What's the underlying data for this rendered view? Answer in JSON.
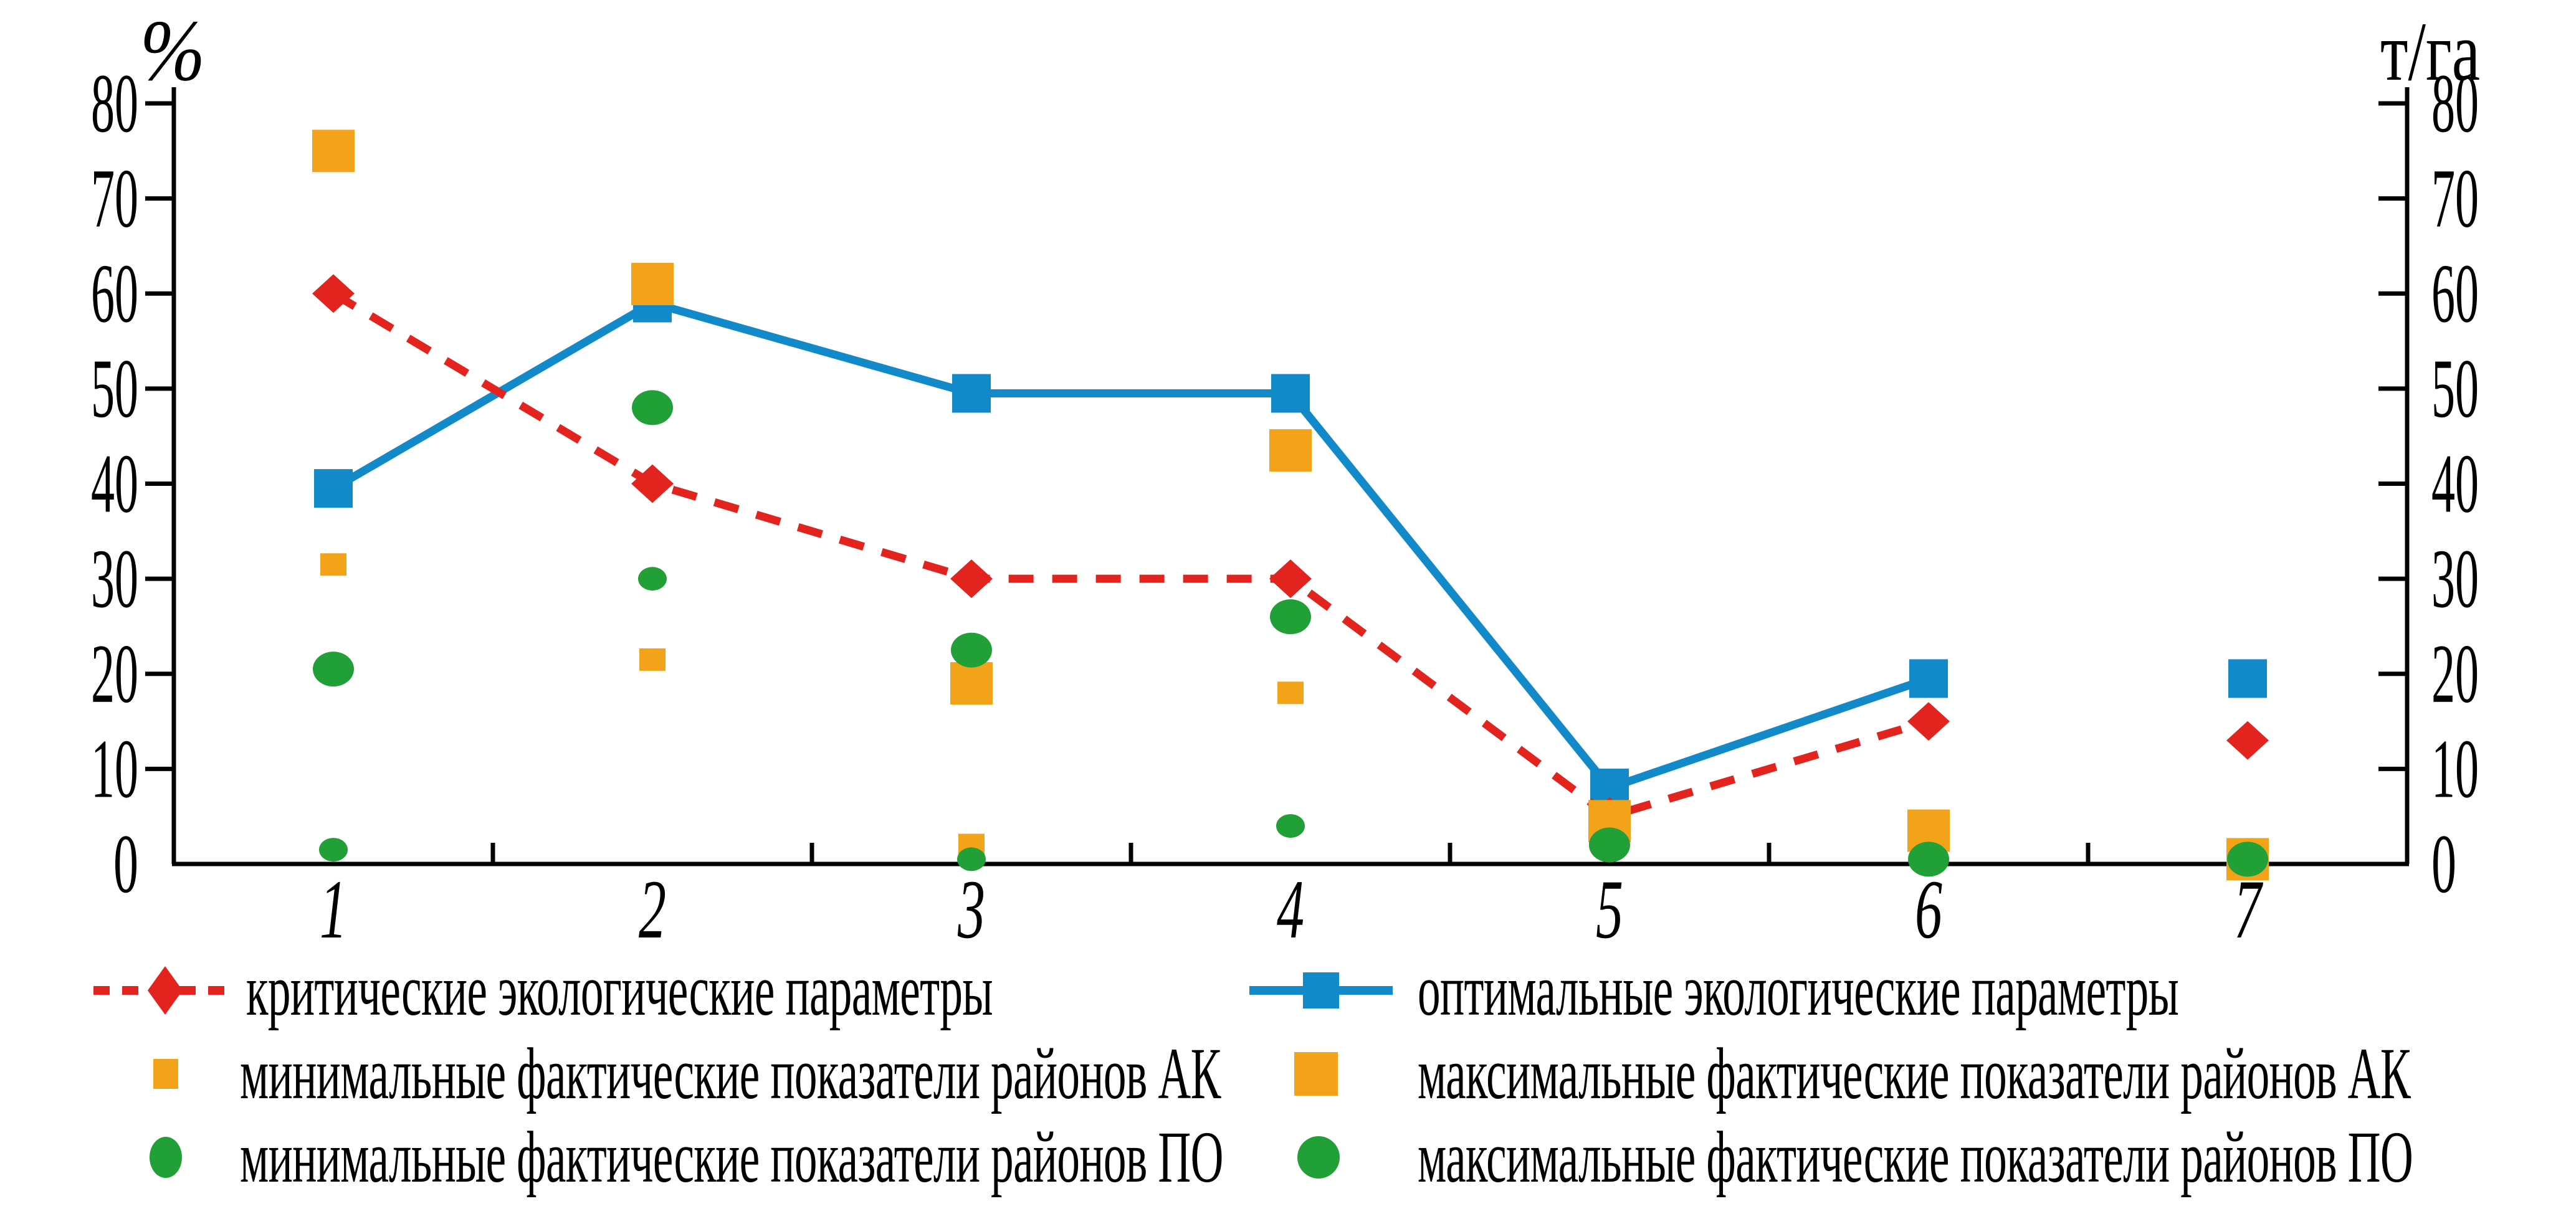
{
  "chart_data": {
    "type": "line",
    "title": "",
    "left_axis_label": "%",
    "right_axis_label": "т/га",
    "categories": [
      "1",
      "2",
      "3",
      "4",
      "5",
      "6",
      "7"
    ],
    "ylim": [
      0,
      80
    ],
    "y_tick_step": 10,
    "y_ticks": [
      0,
      10,
      20,
      30,
      40,
      50,
      60,
      70,
      80
    ],
    "grid": "off",
    "legend_position": "bottom",
    "axis_color": "#000000",
    "background": "#ffffff",
    "series": [
      {
        "name": "критические экологические параметры",
        "type": "line",
        "line_style": "dashed",
        "color": "#e3231d",
        "marker": "diamond",
        "connect_count": 6,
        "values": [
          60,
          40,
          30,
          30,
          5,
          15,
          13
        ]
      },
      {
        "name": "оптимальные экологические параметры",
        "type": "line",
        "line_style": "solid",
        "color": "#1289c9",
        "marker": "square",
        "connect_count": 6,
        "values": [
          39.5,
          59,
          49.5,
          49.5,
          8,
          19.5,
          19.5
        ]
      },
      {
        "name": "минимальные фактические показатели районов АК",
        "type": "scatter",
        "color": "#f3a31a",
        "marker": "square-small",
        "values": [
          31.5,
          21.5,
          2,
          18,
          4.5,
          3.5,
          0.5
        ]
      },
      {
        "name": "максимальные фактические показатели районов АК",
        "type": "scatter",
        "color": "#f3a31a",
        "marker": "square-large",
        "values": [
          75,
          61,
          19,
          43.5,
          4.5,
          3.5,
          0.5
        ]
      },
      {
        "name": "минимальные фактические показатели районов ПО",
        "type": "scatter",
        "color": "#22a038",
        "marker": "circle-small",
        "values": [
          1.5,
          30,
          0.5,
          4,
          2,
          0.5,
          0.5
        ]
      },
      {
        "name": "максимальные фактические показатели районов ПО",
        "type": "scatter",
        "color": "#22a038",
        "marker": "circle-large",
        "values": [
          20.5,
          48,
          22.5,
          26,
          2,
          0.5,
          0.5
        ]
      }
    ]
  },
  "legend": {
    "items": [
      {
        "label": "критические экологические параметры",
        "series_index": 0
      },
      {
        "label": "оптимальные экологические параметры",
        "series_index": 1
      },
      {
        "label": "минимальные фактические показатели районов АК",
        "series_index": 2
      },
      {
        "label": "максимальные фактические показатели районов АК",
        "series_index": 3
      },
      {
        "label": "минимальные фактические показатели районов ПО",
        "series_index": 4
      },
      {
        "label": "максимальные фактические показатели районов ПО",
        "series_index": 5
      }
    ]
  }
}
